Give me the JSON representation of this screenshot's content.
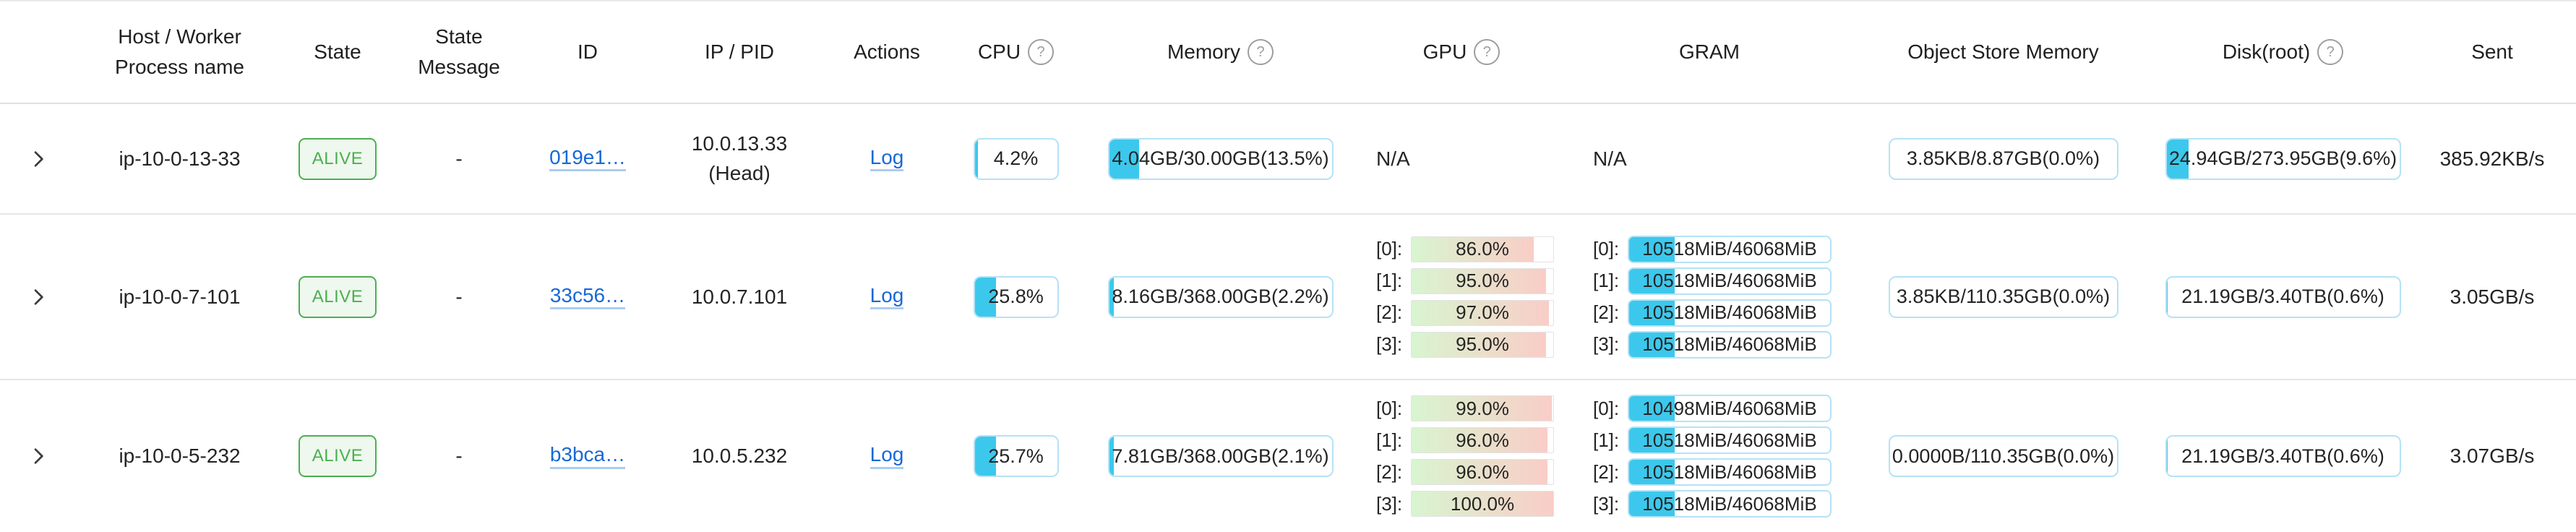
{
  "colors": {
    "progress_fill_cyan": "#3cc8ec",
    "progress_box_border": "#b5e2f6",
    "gpu_gradient_start": "#d8f5d0",
    "gpu_gradient_end": "#f9cdc7",
    "state_alive_green": "#4caf50",
    "state_alive_bg": "#eef8ee",
    "link_blue": "#1769d6",
    "divider_gray": "#e0e0e0",
    "text_dark": "#242424"
  },
  "icons": {
    "help_glyph": "?",
    "expand_icon": "chevron-right"
  },
  "header": {
    "columns": [
      {
        "label": "Host / Worker Process name"
      },
      {
        "label": "State"
      },
      {
        "label": "State Message"
      },
      {
        "label": "ID"
      },
      {
        "label": "IP / PID"
      },
      {
        "label": "Actions"
      },
      {
        "label": "CPU",
        "help": true
      },
      {
        "label": "Memory",
        "help": true
      },
      {
        "label": "GPU",
        "help": true
      },
      {
        "label": "GRAM"
      },
      {
        "label": "Object Store Memory"
      },
      {
        "label": "Disk(root)",
        "help": true
      },
      {
        "label": "Sent"
      }
    ]
  },
  "rows": [
    {
      "host": "ip-10-0-13-33",
      "state": "ALIVE",
      "state_message": "-",
      "id": "019e1…",
      "ip": "10.0.13.33",
      "ip_sub": "(Head)",
      "action": "Log",
      "cpu": {
        "label": "4.2%",
        "pct": 4.2
      },
      "memory": {
        "label": "4.04GB/30.00GB(13.5%)",
        "pct": 13.5
      },
      "gpu": {
        "na": "N/A"
      },
      "gram": {
        "na": "N/A"
      },
      "object_store": {
        "label": "3.85KB/8.87GB(0.0%)",
        "pct": 0
      },
      "disk": {
        "label": "24.94GB/273.95GB(9.6%)",
        "pct": 9.6
      },
      "sent": "385.92KB/s"
    },
    {
      "host": "ip-10-0-7-101",
      "state": "ALIVE",
      "state_message": "-",
      "id": "33c56…",
      "ip": "10.0.7.101",
      "action": "Log",
      "cpu": {
        "label": "25.8%",
        "pct": 25.8
      },
      "memory": {
        "label": "8.16GB/368.00GB(2.2%)",
        "pct": 2.2
      },
      "gpu": {
        "entries": [
          {
            "idx": "[0]:",
            "label": "86.0%",
            "pct": 86
          },
          {
            "idx": "[1]:",
            "label": "95.0%",
            "pct": 95
          },
          {
            "idx": "[2]:",
            "label": "97.0%",
            "pct": 97
          },
          {
            "idx": "[3]:",
            "label": "95.0%",
            "pct": 95
          }
        ]
      },
      "gram": {
        "entries": [
          {
            "idx": "[0]:",
            "label": "10518MiB/46068MiB",
            "pct": 22.8
          },
          {
            "idx": "[1]:",
            "label": "10518MiB/46068MiB",
            "pct": 22.8
          },
          {
            "idx": "[2]:",
            "label": "10518MiB/46068MiB",
            "pct": 22.8
          },
          {
            "idx": "[3]:",
            "label": "10518MiB/46068MiB",
            "pct": 22.8
          }
        ]
      },
      "object_store": {
        "label": "3.85KB/110.35GB(0.0%)",
        "pct": 0
      },
      "disk": {
        "label": "21.19GB/3.40TB(0.6%)",
        "pct": 0.6
      },
      "sent": "3.05GB/s"
    },
    {
      "host": "ip-10-0-5-232",
      "state": "ALIVE",
      "state_message": "-",
      "id": "b3bca…",
      "ip": "10.0.5.232",
      "action": "Log",
      "cpu": {
        "label": "25.7%",
        "pct": 25.7
      },
      "memory": {
        "label": "7.81GB/368.00GB(2.1%)",
        "pct": 2.1
      },
      "gpu": {
        "entries": [
          {
            "idx": "[0]:",
            "label": "99.0%",
            "pct": 99
          },
          {
            "idx": "[1]:",
            "label": "96.0%",
            "pct": 96
          },
          {
            "idx": "[2]:",
            "label": "96.0%",
            "pct": 96
          },
          {
            "idx": "[3]:",
            "label": "100.0%",
            "pct": 100
          }
        ]
      },
      "gram": {
        "entries": [
          {
            "idx": "[0]:",
            "label": "10498MiB/46068MiB",
            "pct": 22.8
          },
          {
            "idx": "[1]:",
            "label": "10518MiB/46068MiB",
            "pct": 22.8
          },
          {
            "idx": "[2]:",
            "label": "10518MiB/46068MiB",
            "pct": 22.8
          },
          {
            "idx": "[3]:",
            "label": "10518MiB/46068MiB",
            "pct": 22.8
          }
        ]
      },
      "object_store": {
        "label": "0.0000B/110.35GB(0.0%)",
        "pct": 0
      },
      "disk": {
        "label": "21.19GB/3.40TB(0.6%)",
        "pct": 0.6
      },
      "sent": "3.07GB/s"
    }
  ]
}
